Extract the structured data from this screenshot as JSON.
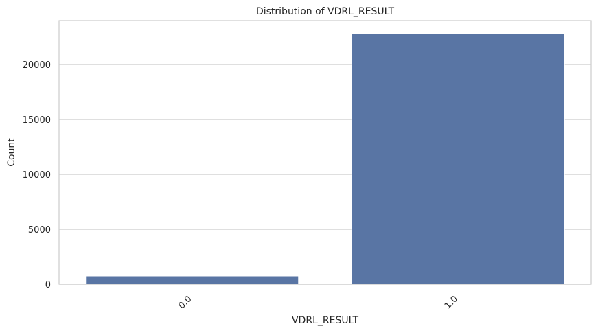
{
  "chart_data": {
    "type": "bar",
    "title": "Distribution of VDRL_RESULT",
    "xlabel": "VDRL_RESULT",
    "ylabel": "Count",
    "categories": [
      "0.0",
      "1.0"
    ],
    "values": [
      750,
      22800
    ],
    "ylim": [
      0,
      24000
    ],
    "yticks": [
      0,
      5000,
      10000,
      15000,
      20000
    ],
    "grid": "y",
    "xtick_rotation": -45,
    "colors": {
      "bar": "#5975a4",
      "grid": "#cccccc",
      "spine": "#cccccc",
      "text": "#262626"
    }
  }
}
